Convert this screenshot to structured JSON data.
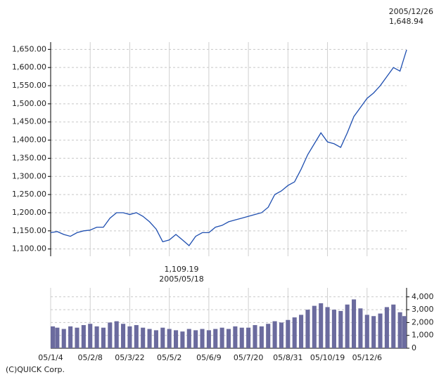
{
  "chart_data": {
    "type": "line",
    "annotations": {
      "last_date": "2005/12/26",
      "last_value": "1,648.94",
      "low_value": "1,109.19",
      "low_date": "2005/05/18",
      "credit": "(C)QUICK Corp."
    },
    "categories": [
      "05/1/4",
      null,
      null,
      null,
      null,
      null,
      "05/2/8",
      null,
      null,
      null,
      null,
      null,
      "05/3/22",
      null,
      null,
      null,
      null,
      null,
      "05/5/2",
      null,
      null,
      null,
      null,
      null,
      "05/6/9",
      null,
      null,
      null,
      null,
      null,
      "05/7/20",
      null,
      null,
      null,
      null,
      null,
      "05/8/31",
      null,
      null,
      null,
      null,
      null,
      "05/10/19",
      null,
      null,
      null,
      null,
      null,
      "05/12/6",
      null,
      null,
      null,
      null,
      null,
      null
    ],
    "series": [
      {
        "color": "#1f4fb0",
        "values": [
          1145,
          1148,
          1140,
          1135,
          1145,
          1150,
          1152,
          1160,
          1160,
          1185,
          1200,
          1200,
          1195,
          1200,
          1190,
          1175,
          1155,
          1120,
          1125,
          1140,
          1125,
          1109.19,
          1135,
          1145,
          1145,
          1160,
          1165,
          1175,
          1180,
          1185,
          1190,
          1195,
          1200,
          1215,
          1250,
          1260,
          1275,
          1285,
          1320,
          1360,
          1390,
          1420,
          1395,
          1390,
          1380,
          1420,
          1465,
          1490,
          1515,
          1530,
          1550,
          1575,
          1600,
          1590,
          1648.94
        ]
      },
      {
        "color": "#6b6b9e",
        "axis": "y2",
        "values": [
          1700,
          1600,
          1500,
          1700,
          1600,
          1800,
          1900,
          1700,
          1600,
          2000,
          2100,
          1900,
          1700,
          1800,
          1600,
          1500,
          1400,
          1600,
          1500,
          1400,
          1300,
          1500,
          1400,
          1500,
          1400,
          1500,
          1600,
          1500,
          1700,
          1600,
          1600,
          1800,
          1700,
          1900,
          2100,
          2000,
          2200,
          2400,
          2600,
          3000,
          3300,
          3500,
          3200,
          3000,
          2900,
          3400,
          3800,
          3100,
          2600,
          2500,
          2700,
          3200,
          3400,
          2800,
          2500
        ]
      }
    ],
    "ylim": [
      1080,
      1670
    ],
    "yticks": [
      {
        "value": 1100,
        "label": "1,100.00"
      },
      {
        "value": 1150,
        "label": "1,150.00"
      },
      {
        "value": 1200,
        "label": "1,200.00"
      },
      {
        "value": 1250,
        "label": "1,250.00"
      },
      {
        "value": 1300,
        "label": "1,300.00"
      },
      {
        "value": 1350,
        "label": "1,350.00"
      },
      {
        "value": 1400,
        "label": "1,400.00"
      },
      {
        "value": 1450,
        "label": "1,450.00"
      },
      {
        "value": 1500,
        "label": "1,500.00"
      },
      {
        "value": 1550,
        "label": "1,550.00"
      },
      {
        "value": 1600,
        "label": "1,600.00"
      },
      {
        "value": 1650,
        "label": "1,650.00"
      }
    ],
    "y2lim": [
      0,
      4700
    ],
    "y2ticks": [
      0,
      {
        "value": 1000,
        "label": "1,000"
      },
      {
        "value": 2000,
        "label": "2,000"
      },
      {
        "value": 3000,
        "label": "3,000"
      },
      {
        "value": 4000,
        "label": "4,000"
      }
    ],
    "grid": true
  }
}
